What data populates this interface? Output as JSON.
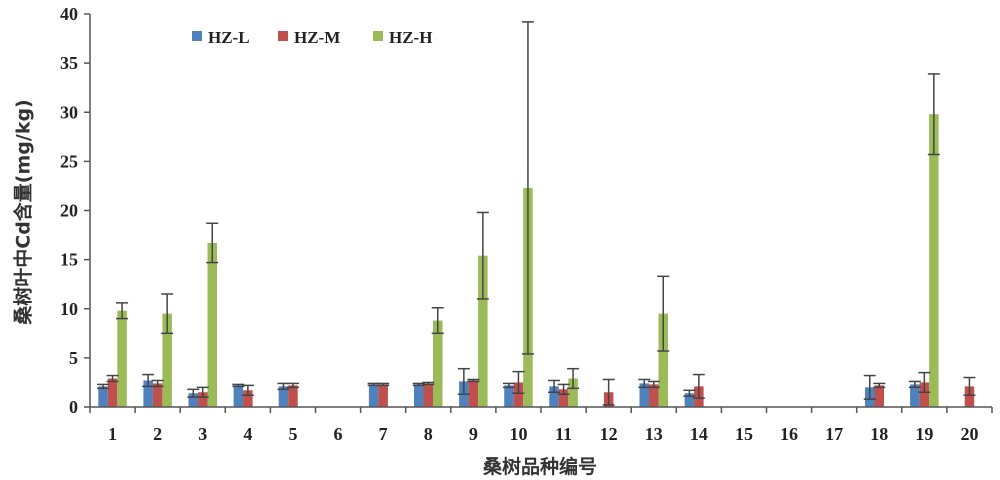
{
  "chart_data": {
    "type": "bar",
    "ylabel": "桑树叶中Cd含量(mg/kg)",
    "xlabel": "桑树品种编号",
    "categories": [
      "1",
      "2",
      "3",
      "4",
      "5",
      "6",
      "7",
      "8",
      "9",
      "10",
      "11",
      "12",
      "13",
      "14",
      "15",
      "16",
      "17",
      "18",
      "19",
      "20"
    ],
    "ylim": [
      0,
      40
    ],
    "yticks": [
      0,
      5,
      10,
      15,
      20,
      25,
      30,
      35,
      40
    ],
    "grid": false,
    "legend_position": "top-left",
    "series": [
      {
        "name": "HZ-L",
        "color": "#4f81bd",
        "values": [
          2.1,
          2.7,
          1.4,
          2.2,
          2.1,
          null,
          2.3,
          2.3,
          2.6,
          2.2,
          2.1,
          null,
          2.4,
          1.4,
          null,
          null,
          null,
          2.0,
          2.3,
          null
        ],
        "errors": [
          0.2,
          0.6,
          0.4,
          0.1,
          0.3,
          null,
          0.1,
          0.1,
          1.3,
          0.2,
          0.6,
          null,
          0.4,
          0.3,
          null,
          null,
          null,
          1.2,
          0.3,
          null
        ]
      },
      {
        "name": "HZ-M",
        "color": "#c0504d",
        "values": [
          2.9,
          2.4,
          1.5,
          1.7,
          2.2,
          null,
          2.3,
          2.4,
          2.7,
          2.5,
          1.8,
          1.5,
          2.3,
          2.1,
          null,
          null,
          null,
          2.2,
          2.5,
          2.1
        ],
        "errors": [
          0.3,
          0.3,
          0.5,
          0.5,
          0.2,
          null,
          0.1,
          0.1,
          0.1,
          1.1,
          0.5,
          1.3,
          0.3,
          1.2,
          null,
          null,
          null,
          0.2,
          1.0,
          0.9
        ]
      },
      {
        "name": "HZ-H",
        "color": "#9bbb59",
        "values": [
          9.8,
          9.5,
          16.7,
          null,
          null,
          null,
          null,
          8.8,
          15.4,
          22.3,
          2.9,
          null,
          9.5,
          null,
          null,
          null,
          null,
          null,
          29.8,
          null
        ],
        "errors": [
          0.8,
          2.0,
          2.0,
          null,
          null,
          null,
          null,
          1.3,
          4.4,
          16.9,
          1.0,
          null,
          3.8,
          null,
          null,
          null,
          null,
          null,
          4.1,
          null
        ]
      }
    ]
  }
}
